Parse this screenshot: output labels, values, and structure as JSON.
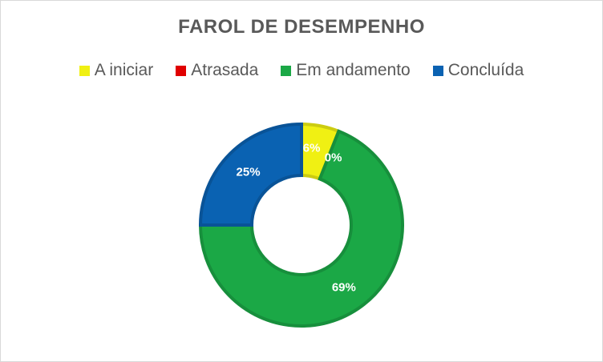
{
  "chart_data": {
    "type": "pie",
    "variant": "donut",
    "title": "FAROL DE DESEMPENHO",
    "legend_position": "top",
    "categories": [
      "A iniciar",
      "Atrasada",
      "Em andamento",
      "Concluída"
    ],
    "values": [
      6,
      0,
      69,
      25
    ],
    "data_labels": [
      "6%",
      "0%",
      "69%",
      "25%"
    ],
    "colors": [
      "#f0f013",
      "#e00000",
      "#1ba846",
      "#0a62b2"
    ]
  }
}
